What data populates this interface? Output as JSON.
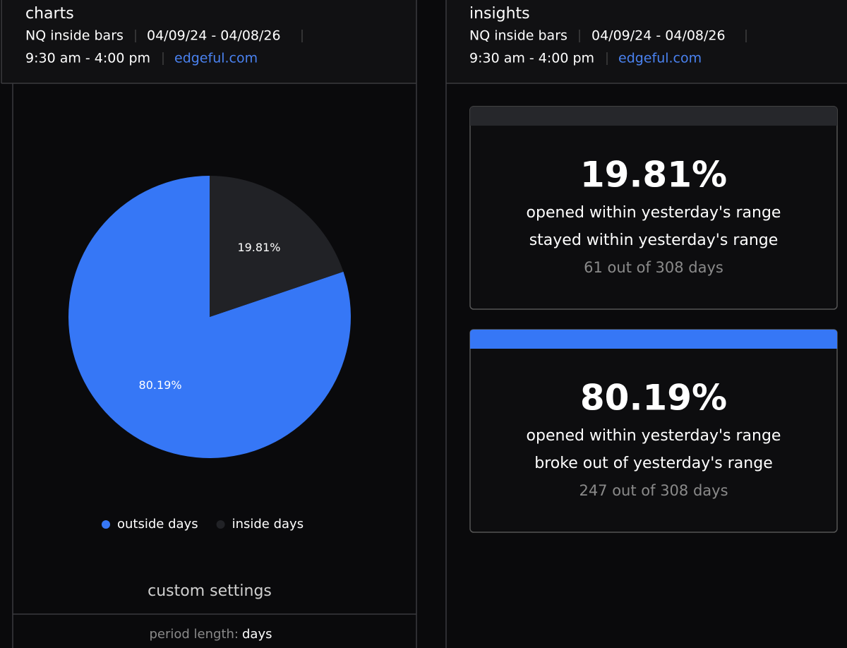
{
  "charts_header": {
    "title": "charts",
    "instrument": "NQ inside bars",
    "date_range": "04/09/24 - 04/08/26",
    "session": "9:30 am - 4:00 pm",
    "source": "edgeful.com"
  },
  "insights_header": {
    "title": "insights",
    "instrument": "NQ inside bars",
    "date_range": "04/09/24 - 04/08/26",
    "session": "9:30 am - 4:00 pm",
    "source": "edgeful.com"
  },
  "chart_data": {
    "type": "pie",
    "categories": [
      "outside days",
      "inside days"
    ],
    "values": [
      80.19,
      19.81
    ],
    "value_labels": [
      "80.19%",
      "19.81%"
    ],
    "colors": [
      "#3677f6",
      "#212226"
    ],
    "legend": "bottom"
  },
  "insights": [
    {
      "value": "19.81%",
      "line1": "opened within yesterday's range",
      "line2": "stayed within yesterday's range",
      "count": "61 out of 308 days",
      "color": "#26272b"
    },
    {
      "value": "80.19%",
      "line1": "opened within yesterday's range",
      "line2": "broke out of yesterday's range",
      "count": "247 out of 308 days",
      "color": "#3677f6"
    }
  ],
  "custom_settings": {
    "title": "custom settings",
    "period_length_label": "period length:",
    "period_length_value": "days"
  }
}
